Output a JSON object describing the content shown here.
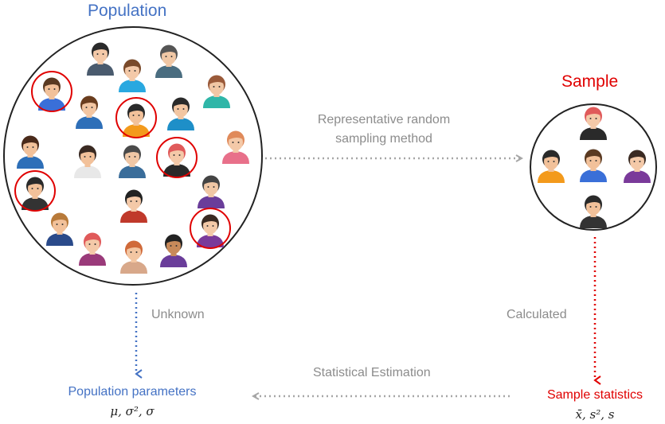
{
  "population": {
    "title": "Population"
  },
  "sample": {
    "title": "Sample"
  },
  "sampling_label_line1": "Representative random",
  "sampling_label_line2": "sampling method",
  "unknown_label": "Unknown",
  "calculated_label": "Calculated",
  "estimation_label": "Statistical Estimation",
  "population_parameters": {
    "label": "Population parameters",
    "symbols": "μ, σ², σ"
  },
  "sample_statistics": {
    "label": "Sample statistics",
    "symbols": "x̄, s², s"
  },
  "colors": {
    "blue": "#4472c4",
    "red": "#e00000",
    "gray": "#a6a6a6",
    "circle": "#222222"
  },
  "population_people": [
    {
      "skin": "#f2c19a",
      "hair": "#5a3a22",
      "shirt": "#3a6fd8",
      "selected": true
    },
    {
      "skin": "#f4c9a8",
      "hair": "#2a2a2a",
      "shirt": "#4a5b6e",
      "selected": false
    },
    {
      "skin": "#f4c9a8",
      "hair": "#7a4a2a",
      "shirt": "#29a8e0",
      "selected": false
    },
    {
      "skin": "#f0c7a5",
      "hair": "#555555",
      "shirt": "#4a6d80",
      "selected": false
    },
    {
      "skin": "#f0c7a5",
      "hair": "#9a5a3a",
      "shirt": "#2fb6a8",
      "selected": false
    },
    {
      "skin": "#f3c6a2",
      "hair": "#6a3d1e",
      "shirt": "#2e6fb8",
      "selected": false
    },
    {
      "skin": "#f2c19a",
      "hair": "#2a2a2a",
      "shirt": "#f39a1c",
      "selected": true
    },
    {
      "skin": "#f3c6a2",
      "hair": "#2a2a2a",
      "shirt": "#1e8fc8",
      "selected": false
    },
    {
      "skin": "#f4c9a8",
      "hair": "#e08a5a",
      "shirt": "#e8708a",
      "selected": false
    },
    {
      "skin": "#f2c19a",
      "hair": "#4a2a1a",
      "shirt": "#2d6fb8",
      "selected": false
    },
    {
      "skin": "#f2c19a",
      "hair": "#3a2a22",
      "shirt": "#e8e8e8",
      "selected": false
    },
    {
      "skin": "#f0c7a5",
      "hair": "#4a4a4a",
      "shirt": "#3a6d9a",
      "selected": false
    },
    {
      "skin": "#f4c9a8",
      "hair": "#e05a5a",
      "shirt": "#2a2a2a",
      "selected": true
    },
    {
      "skin": "#f2c19a",
      "hair": "#2a2a2a",
      "shirt": "#333333",
      "selected": true
    },
    {
      "skin": "#f0c7a5",
      "hair": "#444444",
      "shirt": "#6a3d9a",
      "selected": false
    },
    {
      "skin": "#f4c9a8",
      "hair": "#222222",
      "shirt": "#c0392b",
      "selected": false
    },
    {
      "skin": "#f2c19a",
      "hair": "#b87a3a",
      "shirt": "#2a4a8a",
      "selected": false
    },
    {
      "skin": "#f4c9a8",
      "hair": "#e05a5a",
      "shirt": "#9a3a7a",
      "selected": false
    },
    {
      "skin": "#f3c6a2",
      "hair": "#d06a3a",
      "shirt": "#d8a88a",
      "selected": false
    },
    {
      "skin": "#c88a5a",
      "hair": "#222222",
      "shirt": "#6a3d9a",
      "selected": false
    },
    {
      "skin": "#f4c9a8",
      "hair": "#3a2a22",
      "shirt": "#7a3a9a",
      "selected": true
    }
  ],
  "sample_people": [
    {
      "skin": "#f4c9a8",
      "hair": "#e05a5a",
      "shirt": "#2a2a2a"
    },
    {
      "skin": "#f2c19a",
      "hair": "#2a2a2a",
      "shirt": "#f39a1c"
    },
    {
      "skin": "#f2c19a",
      "hair": "#5a3a22",
      "shirt": "#3a6fd8"
    },
    {
      "skin": "#f4c9a8",
      "hair": "#3a2a22",
      "shirt": "#7a3a9a"
    },
    {
      "skin": "#f2c19a",
      "hair": "#2a2a2a",
      "shirt": "#333333"
    }
  ]
}
